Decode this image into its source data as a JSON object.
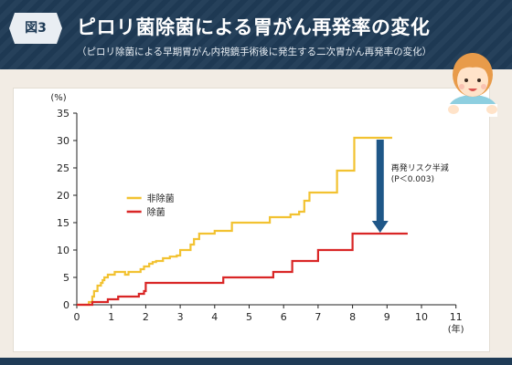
{
  "header": {
    "figure_label": "図3",
    "title": "ピロリ菌除菌による胃がん再発率の変化",
    "subtitle": "（ピロリ除菌による早期胃がん内視鏡手術後に発生する二次胃がん再発率の変化）"
  },
  "colors": {
    "header_bg": "#1f3b56",
    "series_non_eradication": "#f2c231",
    "series_eradication": "#d92626",
    "arrow": "#1f5788"
  },
  "chart_data": {
    "type": "line",
    "step": true,
    "title": "",
    "ylabel": "(%)",
    "xlabel": "(年)",
    "xlim": [
      0,
      11
    ],
    "ylim": [
      0,
      35
    ],
    "xticks": [
      0,
      1,
      2,
      3,
      4,
      5,
      6,
      7,
      8,
      9,
      10,
      11
    ],
    "yticks": [
      0,
      5,
      10,
      15,
      20,
      25,
      30,
      35
    ],
    "grid": false,
    "legend_position": "upper-left",
    "series": [
      {
        "name": "非除菌",
        "color": "#f2c231",
        "points": [
          [
            0,
            0
          ],
          [
            0.35,
            0.5
          ],
          [
            0.45,
            1.5
          ],
          [
            0.5,
            2.5
          ],
          [
            0.6,
            3.5
          ],
          [
            0.7,
            4
          ],
          [
            0.75,
            4.5
          ],
          [
            0.8,
            5
          ],
          [
            0.9,
            5.5
          ],
          [
            1.0,
            5.5
          ],
          [
            1.1,
            6
          ],
          [
            1.3,
            6
          ],
          [
            1.4,
            5.5
          ],
          [
            1.5,
            6
          ],
          [
            1.7,
            6
          ],
          [
            1.85,
            6.5
          ],
          [
            1.95,
            7
          ],
          [
            2.1,
            7.5
          ],
          [
            2.2,
            7.8
          ],
          [
            2.3,
            8
          ],
          [
            2.5,
            8.5
          ],
          [
            2.7,
            8.8
          ],
          [
            2.9,
            9
          ],
          [
            3.0,
            10
          ],
          [
            3.3,
            11
          ],
          [
            3.4,
            12
          ],
          [
            3.55,
            13
          ],
          [
            4.0,
            13.5
          ],
          [
            4.5,
            15
          ],
          [
            5.6,
            16
          ],
          [
            6.2,
            16.5
          ],
          [
            6.45,
            17
          ],
          [
            6.6,
            19
          ],
          [
            6.75,
            20.5
          ],
          [
            7.55,
            24.5
          ],
          [
            8.05,
            30.5
          ],
          [
            9.0,
            30.5
          ]
        ],
        "end_x": 9.15
      },
      {
        "name": "除菌",
        "color": "#d92626",
        "points": [
          [
            0,
            0
          ],
          [
            0.45,
            0.5
          ],
          [
            0.9,
            1
          ],
          [
            1.15,
            1
          ],
          [
            1.2,
            1.5
          ],
          [
            1.8,
            2
          ],
          [
            1.95,
            2.5
          ],
          [
            2.0,
            4
          ],
          [
            4.25,
            5
          ],
          [
            5.7,
            6
          ],
          [
            6.25,
            8
          ],
          [
            7.0,
            10
          ],
          [
            8.0,
            13
          ],
          [
            9.6,
            13
          ]
        ],
        "end_x": 9.6
      }
    ],
    "annotations": [
      {
        "text_line1": "再発リスク半減",
        "text_line2": "(P＜0.003)",
        "arrow_x": 8.8,
        "arrow_from_y": 30.5,
        "arrow_to_y": 13
      }
    ]
  }
}
